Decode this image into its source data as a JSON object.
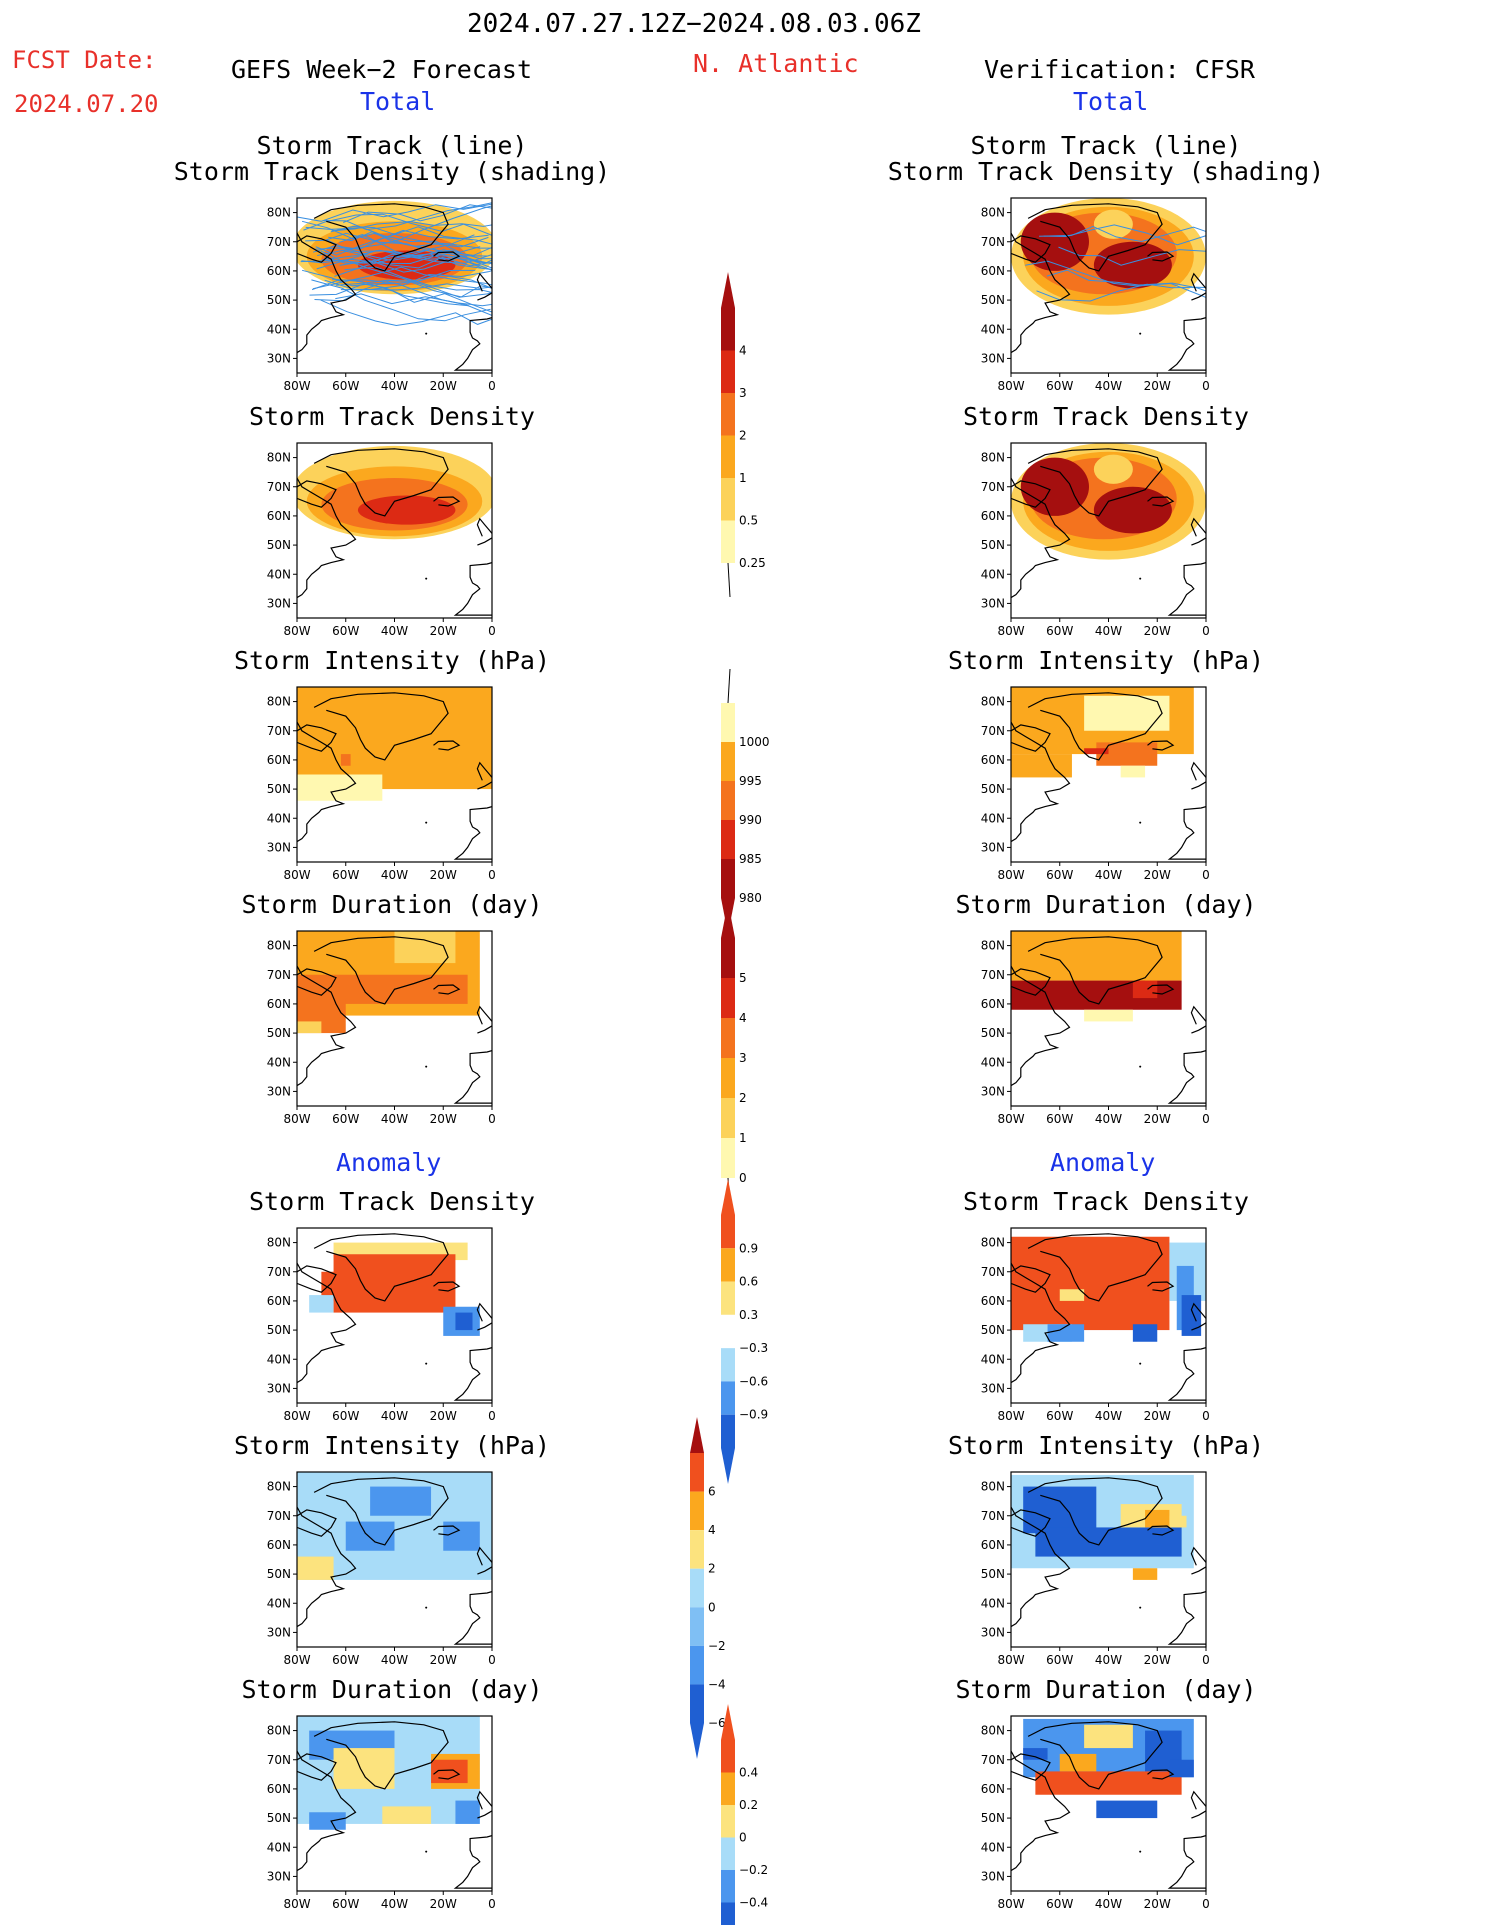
{
  "header": {
    "date_range": "2024.07.27.12Z−2024.08.03.06Z",
    "fcst_label": "FCST Date:",
    "fcst_date": "2024.07.20",
    "left_title": "GEFS Week−2 Forecast",
    "region": "N. Atlantic",
    "right_title": "Verification: CFSR",
    "total_label": "Total",
    "anomaly_label": "Anomaly"
  },
  "panel_titles": {
    "track_line": "Storm Track (line)",
    "track_shading": "Storm Track Density (shading)",
    "density": "Storm Track Density",
    "intensity": "Storm Intensity (hPa)",
    "duration": "Storm Duration (day)"
  },
  "axes": {
    "lat_ticks": [
      "80N",
      "70N",
      "60N",
      "50N",
      "40N",
      "30N"
    ],
    "lon_ticks": [
      "80W",
      "60W",
      "40W",
      "20W",
      "0"
    ]
  },
  "colorbars": {
    "density_total": [
      "4",
      "3",
      "2",
      "1",
      "0.5",
      "0.25"
    ],
    "intensity_total": [
      "1000",
      "995",
      "990",
      "985",
      "980"
    ],
    "duration_total": [
      "5",
      "4",
      "3",
      "2",
      "1",
      "0"
    ],
    "density_anom": [
      "0.9",
      "0.6",
      "0.3",
      "−0.3",
      "−0.6",
      "−0.9"
    ],
    "intensity_anom": [
      "6",
      "4",
      "2",
      "0",
      "−2",
      "−4",
      "−6"
    ],
    "duration_anom": [
      "0.4",
      "0.2",
      "0",
      "−0.2",
      "−0.4"
    ]
  },
  "colors": {
    "warm_scale": [
      "#fff8b0",
      "#fcd25a",
      "#fba81e",
      "#f4731e",
      "#dc2a14",
      "#a50f0f"
    ],
    "intensity_scale": [
      "#fff8b0",
      "#fba81e",
      "#f4731e",
      "#dc2a14",
      "#a50f0f"
    ],
    "anom_scale": [
      "#1f5fd2",
      "#4b96ee",
      "#a8dcf8",
      "#ffffff",
      "#fce37e",
      "#fba81e",
      "#f0501e"
    ],
    "track_line": "#3a8fe0",
    "title_red": "#e8302a",
    "title_blue": "#1a33e8"
  }
}
